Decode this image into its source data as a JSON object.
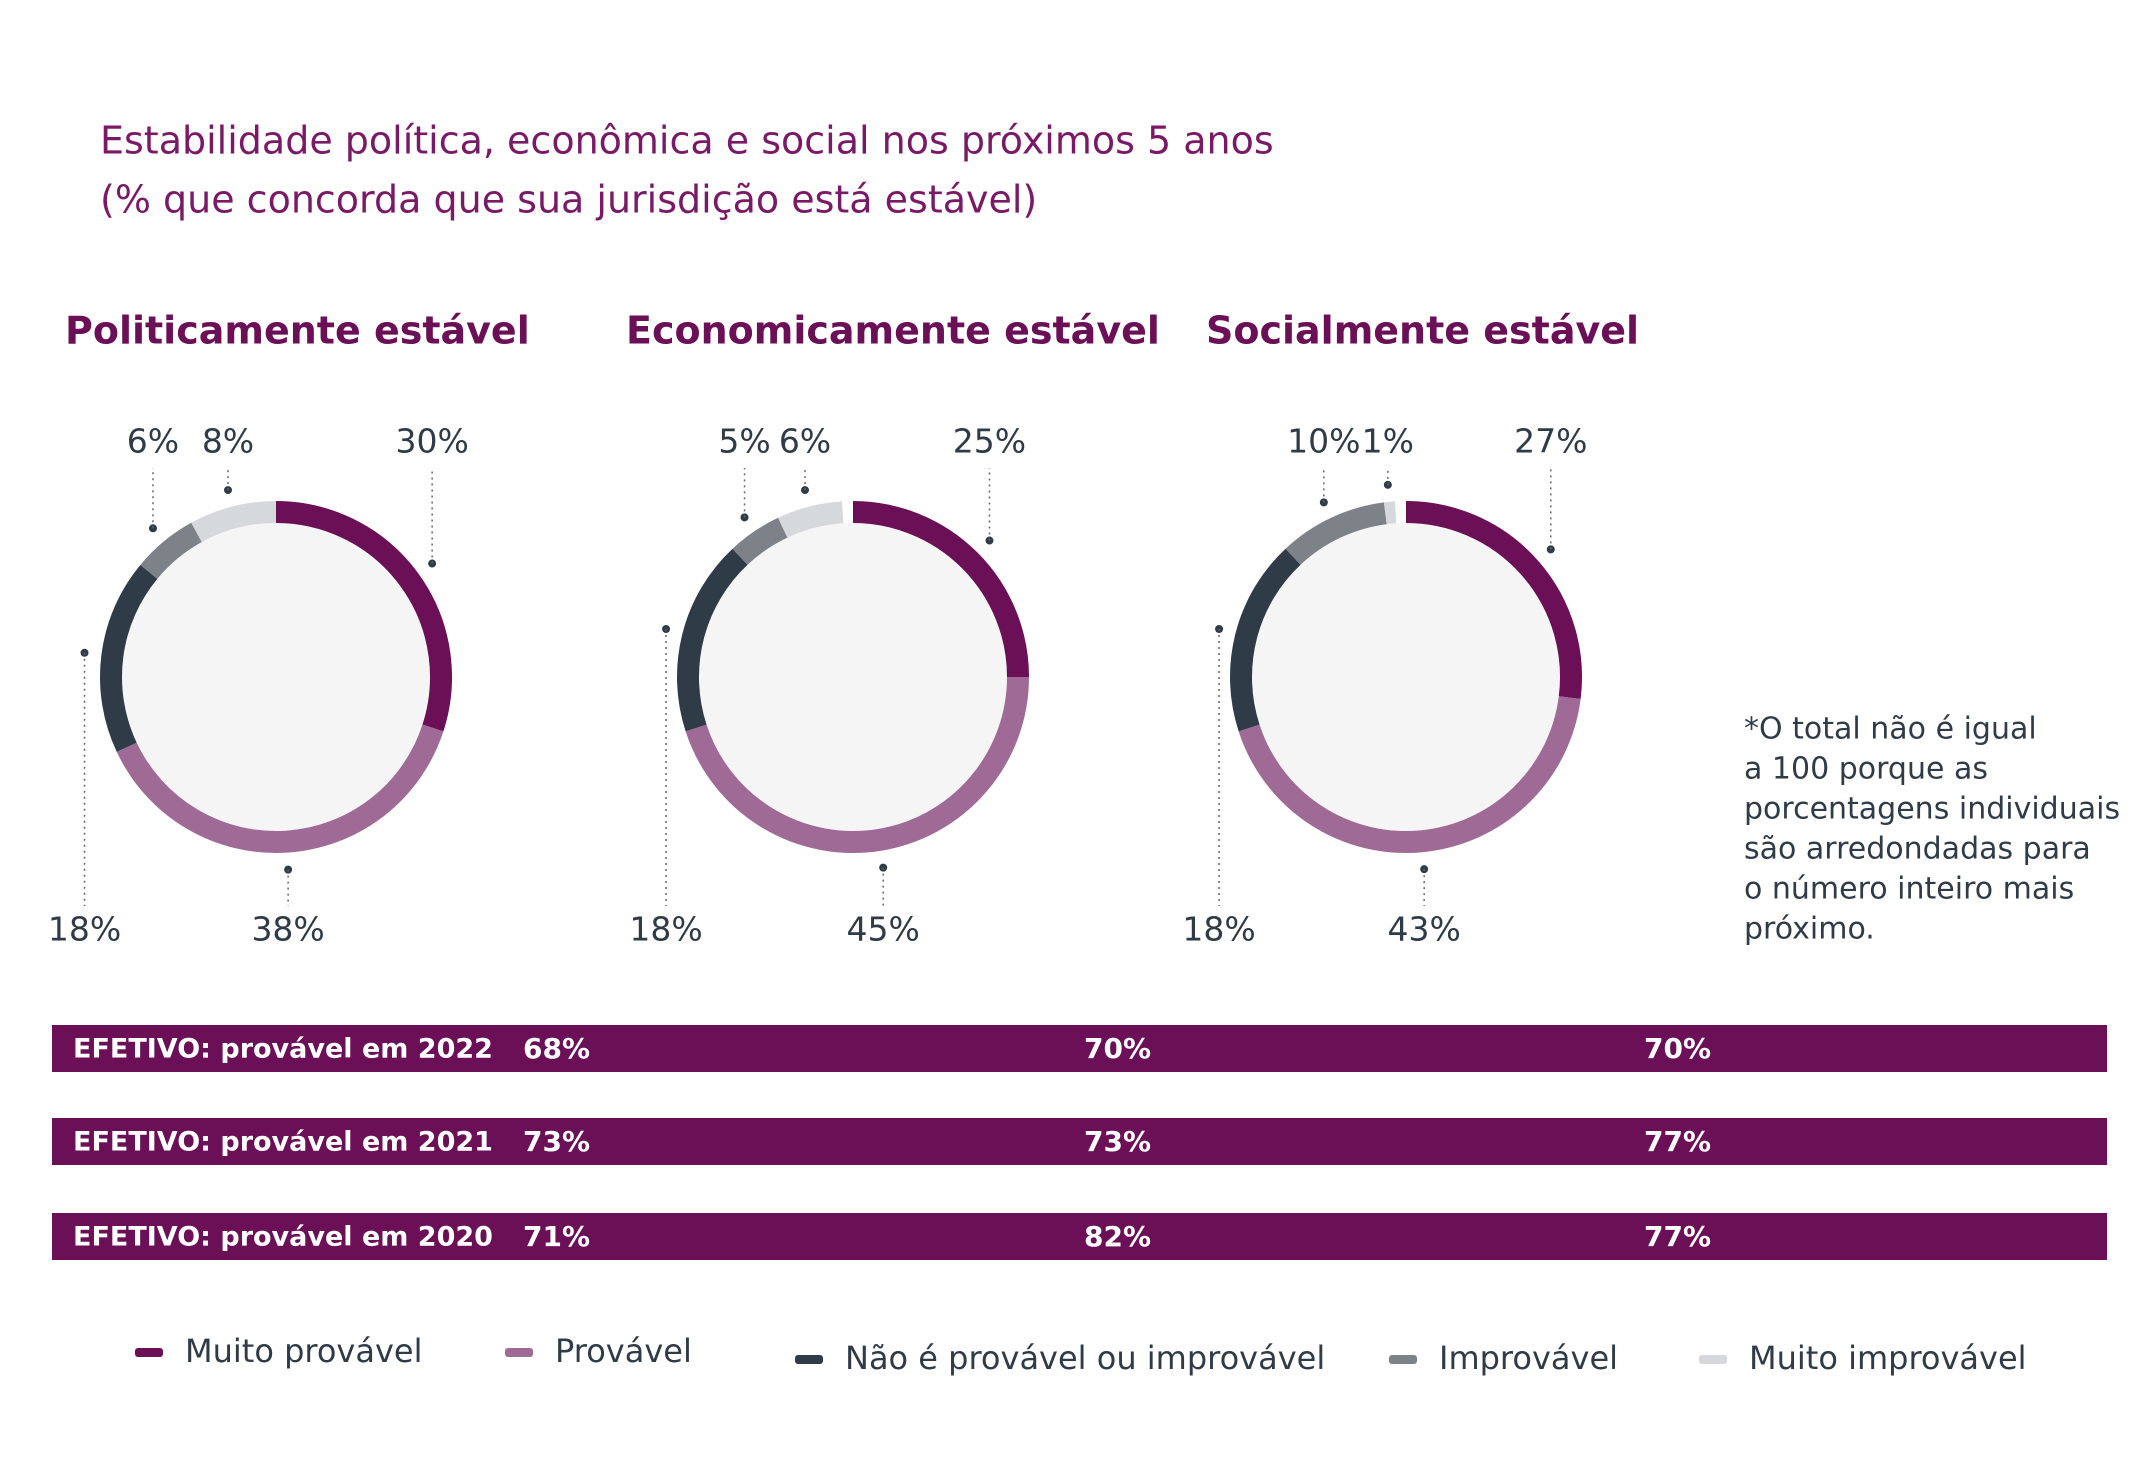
{
  "title": "Estabilidade política, econômica e social nos próximos 5 anos",
  "subtitle": "(% que concorda que sua jurisdição está estável)",
  "legend": {
    "categories": [
      "Muito provável",
      "Provável",
      "Não é provável ou improvável",
      "Improvável",
      "Muito improvável"
    ],
    "colors": [
      "#6b0f56",
      "#a06a96",
      "#2f3c47",
      "#7d8289",
      "#d6d9db"
    ]
  },
  "chart_data": [
    {
      "type": "pie",
      "title": "Politicamente estável",
      "values": [
        30,
        38,
        18,
        6,
        8
      ],
      "value_labels": [
        "30%",
        "38%",
        "18%",
        "6%",
        "8%"
      ]
    },
    {
      "type": "pie",
      "title": "Economicamente estável",
      "values": [
        25,
        45,
        18,
        5,
        6
      ],
      "value_labels": [
        "25%",
        "45%",
        "18%",
        "5%",
        "6%"
      ]
    },
    {
      "type": "pie",
      "title": "Socialmente estável",
      "values": [
        27,
        43,
        18,
        10,
        1
      ],
      "value_labels": [
        "27%",
        "43%",
        "18%",
        "10%",
        "1%"
      ]
    }
  ],
  "rows": [
    {
      "label": "EFETIVO: provável em 2022",
      "values": [
        "68%",
        "70%",
        "70%"
      ]
    },
    {
      "label": "EFETIVO: provável em 2021",
      "values": [
        "73%",
        "73%",
        "77%"
      ]
    },
    {
      "label": "EFETIVO: provável em 2020",
      "values": [
        "71%",
        "82%",
        "77%"
      ]
    }
  ],
  "note": [
    "*O total não é igual",
    "a 100 porque as",
    "porcentagens individuais",
    "são arredondadas para",
    "o número inteiro mais",
    "próximo."
  ]
}
